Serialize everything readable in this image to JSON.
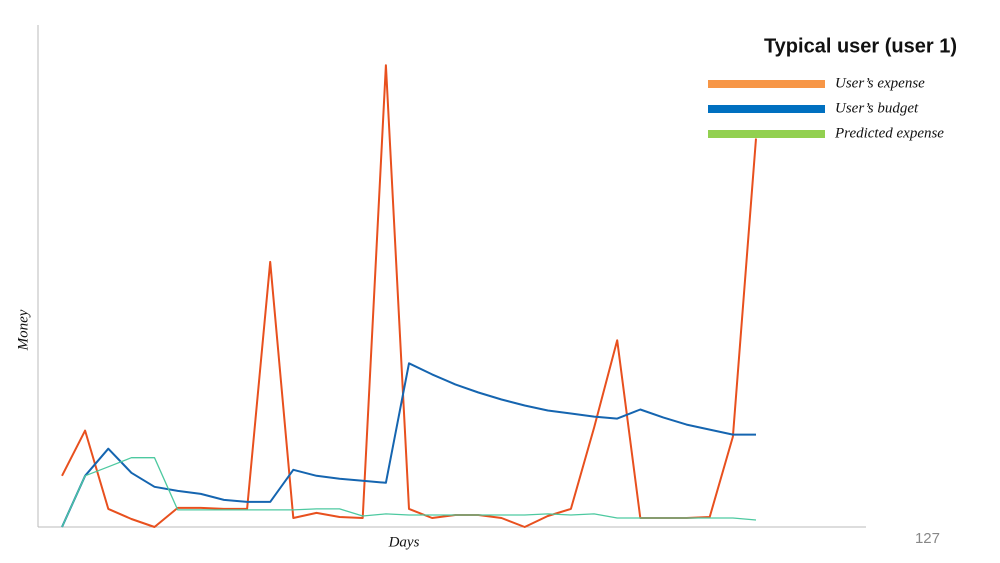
{
  "chart_data": {
    "type": "line",
    "legend_title": "Typical user (user 1)",
    "xlabel": "Days",
    "ylabel": "Money",
    "categories": [
      null,
      null,
      null,
      null,
      null,
      null,
      null,
      null,
      null,
      null,
      null,
      null,
      null,
      null,
      null,
      null,
      null,
      null,
      null,
      null,
      null,
      null,
      null,
      null,
      null,
      null,
      null,
      null,
      null,
      null,
      null
    ],
    "ylim": [
      0,
      500
    ],
    "legend": "top-right",
    "series": [
      {
        "name": "User’s expense",
        "color": "#e8501e",
        "legend_color": "#f79646",
        "width": 2,
        "values": [
          51,
          96,
          18,
          8,
          0,
          19,
          19,
          18,
          18,
          264,
          9,
          14,
          10,
          9,
          460,
          18,
          9,
          12,
          12,
          9,
          0,
          11,
          18,
          99,
          186,
          9,
          9,
          9,
          10,
          90,
          387
        ]
      },
      {
        "name": "User’s budget",
        "color": "#1565b0",
        "legend_color": "#0070c0",
        "width": 2,
        "values": [
          0,
          51,
          78,
          54,
          40,
          36,
          33,
          27,
          25,
          25,
          57,
          51,
          48,
          46,
          44,
          163,
          152,
          142,
          134,
          127,
          121,
          116,
          113,
          110,
          108,
          117,
          109,
          102,
          97,
          92,
          92
        ]
      },
      {
        "name": "Predicted expense",
        "color": "#4dc9a0",
        "legend_color": "#92d050",
        "width": 1.3,
        "values": [
          0,
          51,
          60,
          69,
          69,
          17,
          17,
          17,
          17,
          17,
          17,
          18,
          18,
          11,
          13,
          12,
          12,
          12,
          12,
          12,
          12,
          13,
          12,
          13,
          9,
          9,
          9,
          9,
          9,
          9,
          7
        ]
      }
    ]
  },
  "page_number": "127"
}
